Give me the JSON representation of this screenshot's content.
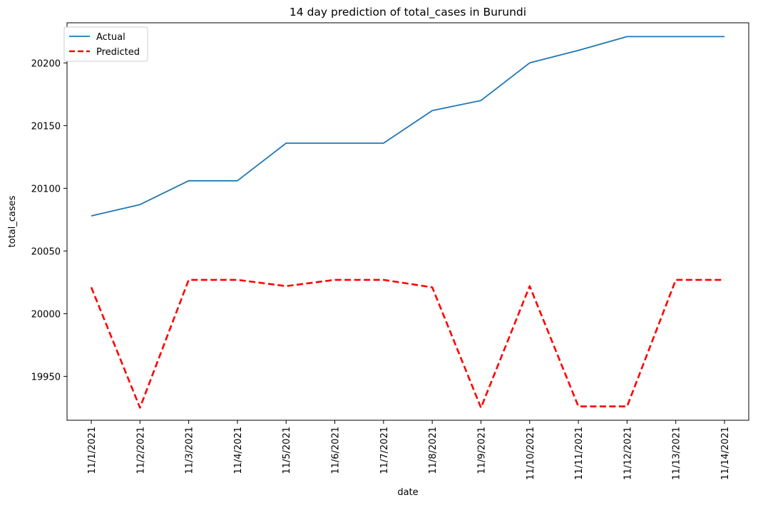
{
  "chart_data": {
    "type": "line",
    "title": "14 day prediction of total_cases in Burundi",
    "xlabel": "date",
    "ylabel": "total_cases",
    "categories": [
      "11/1/2021",
      "11/2/2021",
      "11/3/2021",
      "11/4/2021",
      "11/5/2021",
      "11/6/2021",
      "11/7/2021",
      "11/8/2021",
      "11/9/2021",
      "11/10/2021",
      "11/11/2021",
      "11/12/2021",
      "11/13/2021",
      "11/14/2021"
    ],
    "yticks": [
      19950,
      20000,
      20050,
      20100,
      20150,
      20200
    ],
    "ylim": [
      19915,
      20232
    ],
    "grid": false,
    "legend_position": "top-left",
    "series": [
      {
        "name": "Actual",
        "color": "#1f77b4",
        "style": "solid",
        "values": [
          20078,
          20087,
          20106,
          20106,
          20136,
          20136,
          20136,
          20162,
          20170,
          20200,
          20210,
          20221,
          20221,
          20221
        ]
      },
      {
        "name": "Predicted",
        "color": "#ff0000",
        "style": "dashed",
        "values": [
          20021,
          19925,
          20027,
          20027,
          20022,
          20027,
          20027,
          20021,
          19925,
          20022,
          19926,
          19926,
          20027,
          20027
        ]
      }
    ]
  }
}
